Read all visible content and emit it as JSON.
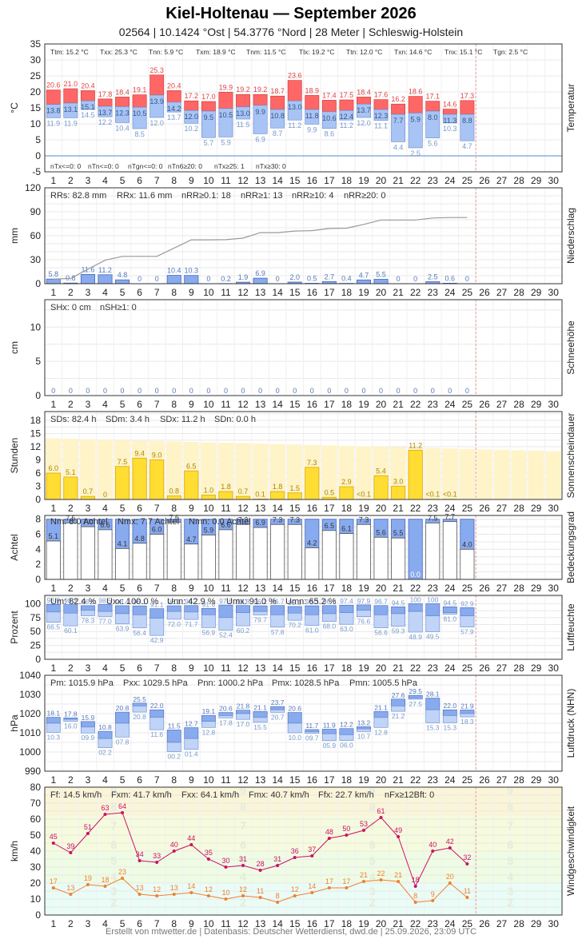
{
  "header": {
    "title": "Kiel-Holtenau  —  September 2026",
    "subtitle": "02564  |  10.1424 °Ost  |  54.3776 °Nord  |  28 Meter  |  Schleswig-Holstein"
  },
  "footer": {
    "text": "Erstellt von mtwetter.de | Datenbasis: Deutscher Wetterdienst, dwd.de | 25.09.2026, 23:09 UTC"
  },
  "chart_data": [
    {
      "type": "bar",
      "name": "Temperatur",
      "ylabel": "°C",
      "ylim": [
        -5,
        35
      ],
      "yticks": [
        -5,
        0,
        5,
        10,
        15,
        20,
        25,
        30,
        35
      ],
      "days": [
        1,
        2,
        3,
        4,
        5,
        6,
        7,
        8,
        9,
        10,
        11,
        12,
        13,
        14,
        15,
        16,
        17,
        18,
        19,
        20,
        21,
        22,
        23,
        24,
        25,
        26,
        27,
        28,
        29,
        30
      ],
      "series": [
        {
          "name": "Tmax",
          "values": [
            20.6,
            21.0,
            20.4,
            17.8,
            18.4,
            19.1,
            25.3,
            20.4,
            17.2,
            17.0,
            19.9,
            19.2,
            19.2,
            18.7,
            23.6,
            18.9,
            17.4,
            17.5,
            18.4,
            17.6,
            16.2,
            18.6,
            17.1,
            14.6,
            17.3
          ]
        },
        {
          "name": "Tm",
          "values": [
            16.1,
            16.5,
            17.2,
            15.5,
            15.4,
            15.2,
            19.0,
            16.8,
            14.2,
            14.0,
            14.8,
            15.3,
            15.8,
            14.5,
            17.2,
            14.5,
            13.8,
            14.2,
            16.2,
            14.5,
            13.0,
            13.4,
            14.0,
            13.0,
            13.0
          ]
        },
        {
          "name": "Tmin",
          "values": [
            11.9,
            11.9,
            14.5,
            12.2,
            10.4,
            8.5,
            12.0,
            13.7,
            10.2,
            5.7,
            5.9,
            11.5,
            6.9,
            8.7,
            11.2,
            9.9,
            8.6,
            11.2,
            12.0,
            11.1,
            4.4,
            2.5,
            5.6,
            10.3,
            4.7
          ]
        }
      ],
      "labels_upper": [
        "13.8",
        "13.1",
        "15.1",
        "13.7",
        "12.3",
        "10.5",
        "13.9",
        "14.2",
        "12.0",
        "9.5",
        "10.5",
        "13.0",
        "9.9",
        "10.8",
        "13.0",
        "11.8",
        "10.6",
        "12.4",
        "13.7",
        "12.3",
        "7.7",
        "5.9",
        "8.0",
        "11.3",
        "8.8"
      ],
      "stats": [
        "Ttm: 15.2 °C",
        "Txx: 25.3 °C",
        "Tnn: 5.9 °C",
        "Txm: 18.9 °C",
        "Tnm: 11.5 °C",
        "Tlx: 19.2 °C",
        "Ttn: 12.0 °C",
        "Txn: 14.6 °C",
        "Tnx: 15.1 °C",
        "Tgn: 2.5 °C"
      ],
      "counts": [
        "nTx<=0: 0",
        "nTn<=0: 0",
        "nTgn<=0: 0",
        "nTn6≥20: 0",
        "nTx≥25: 1",
        "nTx≥30: 0"
      ]
    },
    {
      "type": "bar",
      "name": "Niederschlag",
      "ylabel": "mm",
      "ylim": [
        0,
        120
      ],
      "yticks": [
        0,
        30,
        60,
        90,
        120
      ],
      "values": [
        5.8,
        0.8,
        11.6,
        11.2,
        4.8,
        0,
        0,
        10.4,
        10.3,
        0,
        0.2,
        1.9,
        6.9,
        0,
        2.0,
        0.5,
        2.7,
        0.4,
        4.7,
        5.5,
        0,
        0,
        2.5,
        0.6,
        0
      ],
      "cumulative_line": true,
      "stats": [
        "RRs: 82.8 mm",
        "RRx: 11.6 mm",
        "nRR≥0.1: 18",
        "nRR≥1: 13",
        "nRR≥10: 4",
        "nRR≥20: 0"
      ]
    },
    {
      "type": "bar",
      "name": "Schneehöhe",
      "ylabel": "cm",
      "ylim": [
        0,
        14
      ],
      "yticks": [
        0,
        5,
        10
      ],
      "values": [
        0,
        0,
        0,
        0,
        0,
        0,
        0,
        0,
        0,
        0,
        0,
        0,
        0,
        0,
        0,
        0,
        0,
        0,
        0,
        0,
        0,
        0,
        0,
        0,
        0
      ],
      "stats": [
        "SHx: 0 cm",
        "nSH≥1: 0"
      ]
    },
    {
      "type": "bar",
      "name": "Sonnenscheindauer",
      "ylabel": "Stunden",
      "ylim": [
        0,
        20
      ],
      "yticks": [
        0,
        3,
        6,
        9,
        12,
        15,
        18
      ],
      "values": [
        6.0,
        5.1,
        0.7,
        0,
        7.5,
        9.4,
        9.0,
        0.8,
        6.5,
        1.0,
        1.8,
        0.7,
        0.1,
        1.8,
        1.5,
        7.3,
        0.5,
        2.9,
        0.05,
        5.4,
        3.0,
        11.2,
        0.05,
        0.05,
        0
      ],
      "value_labels": [
        "6.0",
        "5.1",
        "0.7",
        "0",
        "7.5",
        "9.4",
        "9.0",
        "0.8",
        "6.5",
        "1.0",
        "1.8",
        "0.7",
        "0.1",
        "1.8",
        "1.5",
        "7.3",
        "0.5",
        "2.9",
        "<0.1",
        "5.4",
        "3.0",
        "11.2",
        "<0.1",
        "<0.1",
        ""
      ],
      "astronomical_max": [
        13.9,
        13.8,
        13.7,
        13.6,
        13.5,
        13.4,
        13.3,
        13.2,
        13.1,
        13.0,
        12.9,
        12.8,
        12.7,
        12.6,
        12.5,
        12.4,
        12.3,
        12.2,
        12.1,
        12.0,
        11.9,
        11.8,
        11.7,
        11.6,
        11.5,
        11.4,
        11.3,
        11.2,
        11.1,
        11.0
      ],
      "stats": [
        "SDs: 82.4 h",
        "SDm: 3.4 h",
        "SDx: 11.2 h",
        "SDn: 0.0 h"
      ]
    },
    {
      "type": "bar",
      "name": "Bedeckungsgrad",
      "ylabel": "Achtel",
      "ylim": [
        0,
        8.5
      ],
      "yticks": [
        0,
        2,
        4,
        6,
        8
      ],
      "values": [
        5.1,
        7.5,
        7.0,
        6.6,
        4.1,
        4.8,
        6.0,
        7.6,
        4.7,
        5.9,
        6.6,
        7.3,
        6.9,
        7.3,
        7.3,
        4.2,
        6.5,
        6.1,
        7.3,
        5.6,
        5.5,
        0.0,
        7.5,
        7.7,
        4.0
      ],
      "stats": [
        "Nm: 6.0 Achtel",
        "Nmx: 7.7 Achtel",
        "Nmn: 0.0 Achtel"
      ]
    },
    {
      "type": "bar",
      "name": "Luftfeuchte",
      "ylabel": "Prozent",
      "ylim": [
        0,
        115
      ],
      "yticks": [
        0,
        25,
        50,
        75,
        100
      ],
      "series": [
        {
          "name": "max",
          "values": [
            98.9,
            98.3,
            96.5,
            98.5,
            96.4,
            96.1,
            91.1,
            96.3,
            96.7,
            91.6,
            97.6,
            96.8,
            96.2,
            96.7,
            95.0,
            96.3,
            96.7,
            97.4,
            97.9,
            96.7,
            94.5,
            100,
            100,
            94.5,
            92.9
          ]
        },
        {
          "name": "mean",
          "values": [
            85,
            83,
            88,
            86,
            82,
            80,
            74,
            86,
            85,
            80,
            75,
            84,
            86,
            80,
            83,
            80,
            82,
            84,
            88,
            80,
            82,
            86,
            78,
            84,
            78
          ]
        },
        {
          "name": "min",
          "values": [
            66.5,
            60.1,
            78.3,
            77.0,
            63.9,
            56.4,
            42.9,
            72.0,
            71.7,
            56.9,
            52.4,
            60.2,
            79.7,
            57.8,
            70.2,
            61.0,
            68.0,
            63.0,
            76.6,
            56.6,
            59.3,
            48.9,
            49.5,
            81.0,
            57.9
          ]
        }
      ],
      "max_labels": [
        "98.9",
        "98.3",
        "96.5",
        "98.5",
        "96.4",
        "96.1",
        "91.1",
        "96.3",
        "96.7",
        "91.6",
        "97.6",
        "96.8",
        "96.2",
        "96.7",
        "95.0",
        "96.3",
        "96.7",
        "97.4",
        "97.9",
        "96.7",
        "94.5",
        "100",
        "100",
        "94.5",
        "92.9"
      ],
      "stats": [
        "Um: 82.4 %",
        "Uxx: 100.0 %",
        "Unn: 42.9 %",
        "Umx: 91.0 %",
        "Umn: 65.2 %"
      ]
    },
    {
      "type": "bar",
      "name": "Luftdruck (NHN)",
      "ylabel": "hPa",
      "ylim": [
        990,
        1040
      ],
      "yticks": [
        990,
        1000,
        1010,
        1020,
        1030,
        1040
      ],
      "series": [
        {
          "name": "max",
          "values": [
            1018.1,
            1017.8,
            1015.9,
            1010.8,
            1020.8,
            1025.5,
            1022.0,
            1011.5,
            1012.7,
            1019.1,
            1020.6,
            1021.8,
            1021.1,
            1023.7,
            1020.6,
            1011.7,
            1011.9,
            1012.2,
            1013.2,
            1021.1,
            1027.6,
            1029.5,
            1028.1,
            1022.0,
            1021.9
          ]
        },
        {
          "name": "mean",
          "values": [
            1015.0,
            1017.0,
            1013.0,
            1007.0,
            1015.0,
            1024.0,
            1018.0,
            1005.0,
            1007.0,
            1016.0,
            1019.0,
            1020.0,
            1018.0,
            1022.0,
            1015.0,
            1010.5,
            1009.5,
            1009.0,
            1012.0,
            1018.0,
            1024.0,
            1028.0,
            1022.0,
            1019.0,
            1020.0
          ]
        },
        {
          "name": "min",
          "values": [
            1010.3,
            1016.0,
            1009.9,
            1002.2,
            1007.8,
            1020.8,
            1011.6,
            1000.2,
            1001.4,
            1012.8,
            1017.8,
            1017.0,
            1015.5,
            1020.7,
            1010.0,
            1009.7,
            1005.9,
            1006.0,
            1010.7,
            1012.8,
            1021.2,
            1027.5,
            1015.3,
            1015.3,
            1018.3
          ]
        }
      ],
      "max_labels": [
        "18.1",
        "17.8",
        "15.9",
        "10.8",
        "20.8",
        "25.5",
        "22.0",
        "11.5",
        "12.7",
        "19.1",
        "20.6",
        "21.8",
        "21.1",
        "23.7",
        "20.6",
        "11.7",
        "11.9",
        "12.2",
        "13.2",
        "21.1",
        "27.6",
        "29.5",
        "28.1",
        "22.0",
        "21.9"
      ],
      "min_labels": [
        "10.3",
        "16.0",
        "09.9",
        "02.2",
        "07.8",
        "20.8",
        "11.6",
        "00.2",
        "01.4",
        "12.8",
        "17.8",
        "17.0",
        "15.5",
        "20.7",
        "10.0",
        "09.7",
        "05.9",
        "06.0",
        "10.7",
        "12.8",
        "21.2",
        "27.5",
        "15.3",
        "15.3",
        "18.3"
      ],
      "stats": [
        "Pm: 1015.9 hPa",
        "Pxx: 1029.5 hPa",
        "Pnn: 1000.2 hPa",
        "Pmx: 1028.5 hPa",
        "Pmn: 1005.5 hPa"
      ]
    },
    {
      "type": "line",
      "name": "Windgeschwindigkeit",
      "ylabel": "km/h",
      "ylim": [
        0,
        80
      ],
      "yticks": [
        0,
        10,
        20,
        30,
        40,
        50,
        60,
        70,
        80
      ],
      "beaufort": [
        "2",
        "3",
        "4",
        "5",
        "6",
        "7",
        "8",
        "9"
      ],
      "series": [
        {
          "name": "Böen",
          "color": "#cc1166",
          "values": [
            45,
            39,
            51,
            63,
            64,
            34,
            33,
            40,
            44,
            35,
            30,
            31,
            28,
            31,
            36,
            37,
            48,
            50,
            53,
            61,
            49,
            18,
            40,
            42,
            32
          ]
        },
        {
          "name": "Mittel",
          "color": "#f08030",
          "values": [
            17,
            13,
            19,
            18,
            23,
            13,
            12,
            13,
            14,
            12,
            10,
            12,
            11,
            8,
            12,
            14,
            17,
            17,
            21,
            22,
            21,
            8,
            9,
            20,
            11
          ]
        }
      ],
      "stats": [
        "Ff: 14.5 km/h",
        "Fxm: 41.7 km/h",
        "Fxx: 64.1 km/h",
        "Fmx: 40.7 km/h",
        "Ffx: 22.7 km/h",
        "nFx≥12Bft: 0"
      ]
    }
  ]
}
